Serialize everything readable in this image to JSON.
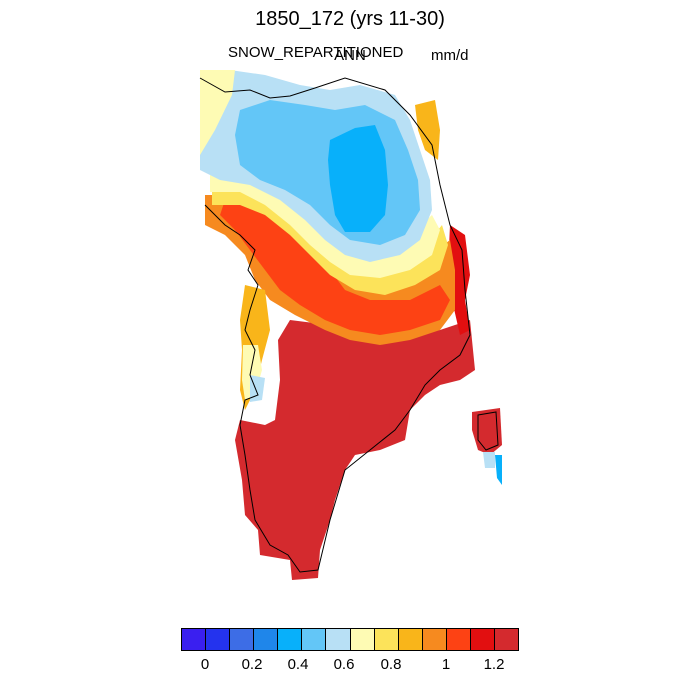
{
  "title": "1850_172 (yrs 11-30)",
  "subtitle_left": "SNOW_REPARTITIONED",
  "subtitle_center": "ANN",
  "subtitle_right": "mm/d",
  "colorbar": {
    "colors": [
      "#3a1ff0",
      "#2433ee",
      "#3d6de6",
      "#1f86ea",
      "#08b0fa",
      "#63c6f7",
      "#b8e0f5",
      "#fefbb4",
      "#fce35a",
      "#f9b51a",
      "#f68a1f",
      "#fd4214",
      "#e20f10",
      "#d42a2e"
    ],
    "labels": [
      "0",
      "0.2",
      "0.4",
      "0.6",
      "0.8",
      "1",
      "1.2"
    ]
  }
}
